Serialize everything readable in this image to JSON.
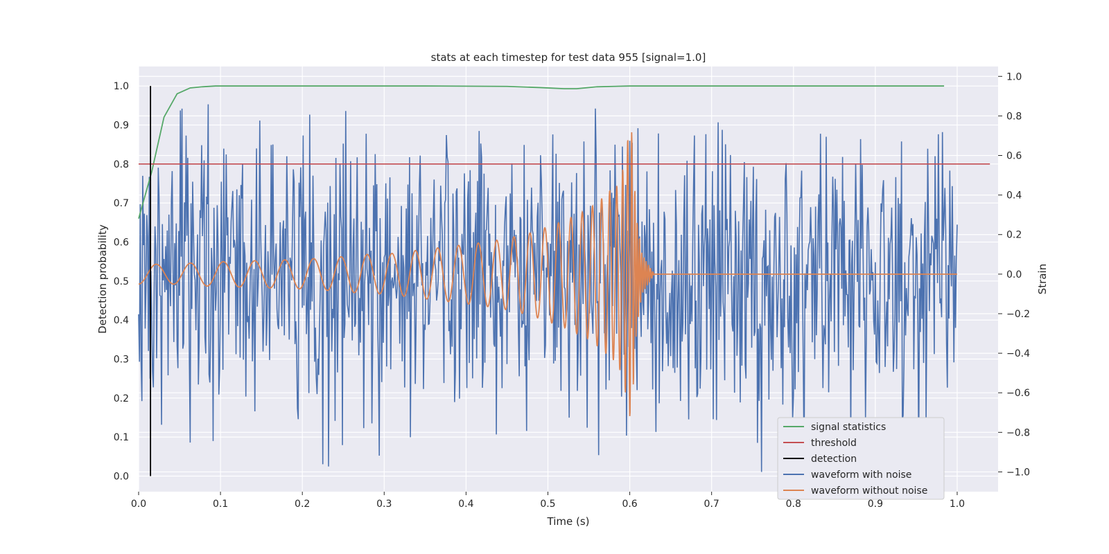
{
  "chart_data": {
    "type": "line",
    "title": "stats at each timestep for test data 955 [signal=1.0]",
    "xlabel": "Time (s)",
    "ylabel": "Detection probability",
    "y2label": "Strain",
    "xlim": [
      0.0,
      1.05
    ],
    "ylim": [
      -0.04,
      1.05
    ],
    "y2lim": [
      -1.1,
      1.05
    ],
    "x_ticks": [
      "0.0",
      "0.1",
      "0.2",
      "0.3",
      "0.4",
      "0.5",
      "0.6",
      "0.7",
      "0.8",
      "0.9",
      "1.0"
    ],
    "y_ticks": [
      "0.0",
      "0.1",
      "0.2",
      "0.3",
      "0.4",
      "0.5",
      "0.6",
      "0.7",
      "0.8",
      "0.9",
      "1.0"
    ],
    "y2_ticks": [
      "−1.0",
      "−0.8",
      "−0.6",
      "−0.4",
      "−0.2",
      "0.0",
      "0.2",
      "0.4",
      "0.6",
      "0.8",
      "1.0"
    ],
    "grid": true,
    "legend_position": "lower-right",
    "colors": {
      "background": "#eaeaf2",
      "signal_statistics": "#55a868",
      "threshold": "#c44e52",
      "detection": "#000000",
      "waveform_noise": "#4c72b0",
      "waveform_clean": "#dd8452"
    },
    "legend": [
      {
        "label": "signal statistics",
        "color": "#55a868"
      },
      {
        "label": "threshold",
        "color": "#c44e52"
      },
      {
        "label": "detection",
        "color": "#000000"
      },
      {
        "label": "waveform with noise",
        "color": "#4c72b0"
      },
      {
        "label": "waveform without noise",
        "color": "#dd8452"
      }
    ],
    "series": [
      {
        "name": "signal statistics",
        "axis": "left",
        "x": [
          0.0,
          0.016,
          0.031,
          0.047,
          0.063,
          0.078,
          0.094,
          0.15,
          0.25,
          0.35,
          0.45,
          0.49,
          0.52,
          0.535,
          0.56,
          0.6,
          0.7,
          0.8,
          0.9,
          0.984
        ],
        "y": [
          0.66,
          0.78,
          0.92,
          0.98,
          0.995,
          0.998,
          1.0,
          1.0,
          1.0,
          1.0,
          0.999,
          0.996,
          0.993,
          0.993,
          0.998,
          1.0,
          1.0,
          1.0,
          1.0,
          1.0
        ]
      },
      {
        "name": "threshold",
        "axis": "left",
        "x": [
          0.0,
          1.04
        ],
        "y": [
          0.8,
          0.8
        ]
      },
      {
        "name": "detection",
        "axis": "left",
        "x": [
          0.0145,
          0.0145
        ],
        "y": [
          0.0,
          1.0
        ]
      },
      {
        "name": "waveform without noise",
        "axis": "right",
        "model": "chirp",
        "t": [
          0.0,
          0.04,
          0.08,
          0.12,
          0.16,
          0.2,
          0.24,
          0.28,
          0.3,
          0.34,
          0.38,
          0.42,
          0.45,
          0.48,
          0.5,
          0.52,
          0.535,
          0.55,
          0.565,
          0.575,
          0.585,
          0.593,
          0.598,
          0.602,
          0.608,
          0.615,
          0.63,
          1.0
        ],
        "envelope": [
          0.05,
          0.05,
          0.06,
          0.065,
          0.07,
          0.075,
          0.085,
          0.1,
          0.1,
          0.12,
          0.14,
          0.16,
          0.18,
          0.21,
          0.24,
          0.27,
          0.3,
          0.33,
          0.38,
          0.42,
          0.45,
          0.55,
          0.7,
          0.75,
          0.3,
          0.1,
          0.0,
          0.0
        ],
        "notes": "oscillation around 0 with rising frequency until ~0.61 s, then flat at 0"
      },
      {
        "name": "waveform with noise",
        "axis": "right",
        "model": "noise",
        "x_range": [
          0.0,
          1.0
        ],
        "samples": 1000,
        "amplitude_range": [
          -1.0,
          1.0
        ],
        "notes": "dense noisy trace; peaks reach about ±0.95"
      }
    ]
  }
}
